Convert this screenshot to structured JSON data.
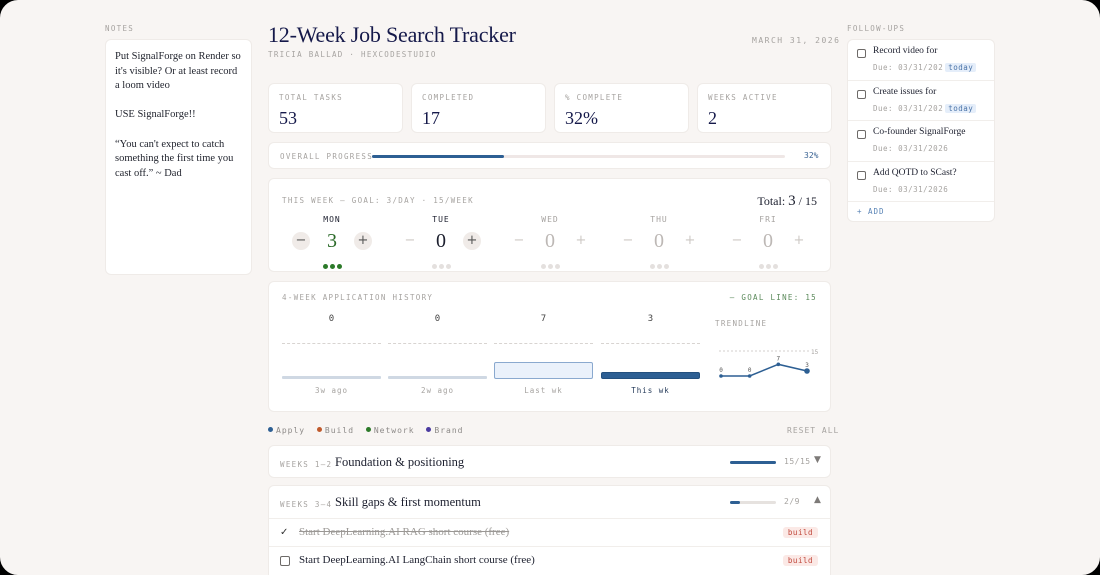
{
  "notes": {
    "label": "NOTES",
    "paragraphs": [
      "Put SignalForge on Render so it's visible? Or at least record a loom video",
      "USE SignalForge!!",
      "“You can't expect to catch something the first time you cast off.” ~ Dad"
    ]
  },
  "header": {
    "title": "12-Week Job Search Tracker",
    "subtitle": "TRICIA BALLAD · HEXCODESTUDIO",
    "date": "MARCH 31, 2026"
  },
  "stats": [
    {
      "label": "TOTAL TASKS",
      "value": "53"
    },
    {
      "label": "COMPLETED",
      "value": "17"
    },
    {
      "label": "% COMPLETE",
      "value": "32%"
    },
    {
      "label": "WEEKS ACTIVE",
      "value": "2"
    }
  ],
  "overall": {
    "label": "OVERALL PROGRESS",
    "percent_text": "32%",
    "percent": 32
  },
  "week": {
    "heading": "THIS WEEK — GOAL: 3/DAY · 15/WEEK",
    "total_label": "Total:",
    "total_value": "3",
    "total_goal": "/ 15",
    "days": [
      {
        "name": "MON",
        "count": "3",
        "done": 3
      },
      {
        "name": "TUE",
        "count": "0",
        "done": 0
      },
      {
        "name": "WED",
        "count": "0",
        "done": 0
      },
      {
        "name": "THU",
        "count": "0",
        "done": 0
      },
      {
        "name": "FRI",
        "count": "0",
        "done": 0
      }
    ],
    "minus_symbol": "−",
    "plus_symbol": "+"
  },
  "history": {
    "heading": "4-WEEK APPLICATION HISTORY",
    "goal_line": "— GOAL LINE: 15",
    "trend_label": "TRENDLINE",
    "trend_goal_label": "15",
    "weeks": [
      {
        "label": "3w ago",
        "value": 0,
        "value_text": "0"
      },
      {
        "label": "2w ago",
        "value": 0,
        "value_text": "0"
      },
      {
        "label": "Last wk",
        "value": 7,
        "value_text": "7"
      },
      {
        "label": "This wk",
        "value": 3,
        "value_text": "3"
      }
    ]
  },
  "chart_data": {
    "type": "bar",
    "title": "4-Week Application History",
    "categories": [
      "3w ago",
      "2w ago",
      "Last wk",
      "This wk"
    ],
    "values": [
      0,
      0,
      7,
      3
    ],
    "goal": 15,
    "xlabel": "",
    "ylabel": ""
  },
  "legend": {
    "items": [
      {
        "label": "Apply",
        "color": "#2d5f93"
      },
      {
        "label": "Build",
        "color": "#c05a2c"
      },
      {
        "label": "Network",
        "color": "#2c7a29"
      },
      {
        "label": "Brand",
        "color": "#4a3aa0"
      }
    ],
    "reset_label": "RESET ALL"
  },
  "phases": [
    {
      "weeks": "WEEKS 1–2",
      "title": "Foundation & positioning",
      "count": "15/15",
      "fraction": 1.0,
      "chevron": "▼",
      "tasks": []
    },
    {
      "weeks": "WEEKS 3–4",
      "title": "Skill gaps & first momentum",
      "count": "2/9",
      "fraction": 0.22,
      "chevron": "▲",
      "tasks": [
        {
          "text": "Start DeepLearning.AI RAG short course (free)",
          "tag": "build",
          "done": true,
          "check": "✓"
        },
        {
          "text": "Start DeepLearning.AI LangChain short course (free)",
          "tag": "build",
          "done": false,
          "check": ""
        }
      ]
    }
  ],
  "followups": {
    "label": "FOLLOW-UPS",
    "items": [
      {
        "title": "Record video for",
        "due": "Due: 03/31/202",
        "badge": "today"
      },
      {
        "title": "Create issues for",
        "due": "Due: 03/31/202",
        "badge": "today"
      },
      {
        "title": "Co-founder SignalForge",
        "due": "Due: 03/31/2026",
        "badge": ""
      },
      {
        "title": "Add QOTD to SCast?",
        "due": "Due: 03/31/2026",
        "badge": ""
      }
    ],
    "add_label": "+ ADD"
  }
}
